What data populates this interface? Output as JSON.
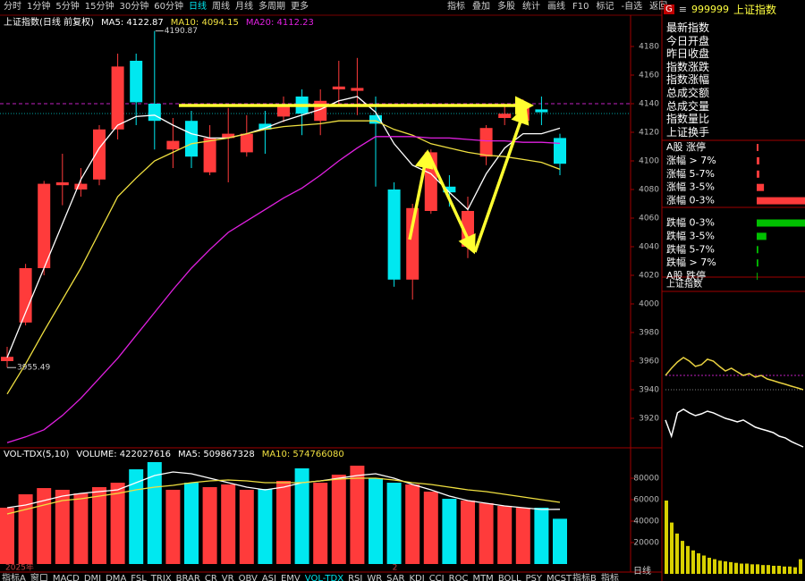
{
  "toolbar": {
    "periods": [
      "分时",
      "1分钟",
      "5分钟",
      "15分钟",
      "30分钟",
      "60分钟",
      "日线",
      "周线",
      "月线",
      "多周期",
      "更多"
    ],
    "active_period": "日线",
    "tools": [
      "指标",
      "叠加",
      "多股",
      "统计",
      "画线",
      "F10",
      "标记",
      "-自选",
      "返回"
    ]
  },
  "sidebar": {
    "badge": "G",
    "menu_icon": "≡",
    "code": "999999",
    "name": "上证指数",
    "fields": [
      "最新指数",
      "今日开盘",
      "昨日收盘",
      "指数涨跌",
      "指数涨幅",
      "总成交额",
      "总成交量",
      "指数量比",
      "上证换手"
    ]
  },
  "bottom_tabs": {
    "left": [
      "指标A",
      "窗口",
      "MACD",
      "DMI",
      "DMA",
      "FSL",
      "TRIX",
      "BRAR",
      "CR",
      "VR",
      "OBV",
      "ASI",
      "EMV",
      "VOL-TDX",
      "RSI",
      "WR",
      "SAR",
      "KDJ",
      "CCI",
      "ROC",
      "MTM",
      "BOLL",
      "PSY",
      "MCST"
    ],
    "active": "VOL-TDX",
    "right": [
      "指标B",
      "指标"
    ],
    "period": "日线"
  },
  "chart_data": [
    {
      "type": "candlestick",
      "title": "上证指数(日线 前复权)",
      "categories": [
        "2025年",
        null,
        null,
        null,
        null,
        null,
        null,
        null,
        null,
        null,
        null,
        null,
        null,
        null,
        null,
        null,
        null,
        null,
        null,
        null,
        null,
        "2",
        null,
        null,
        null,
        null,
        null,
        null,
        null,
        null,
        null
      ],
      "open": [
        3960,
        3987,
        4025,
        4083,
        4080,
        4087,
        4122,
        4170,
        4140,
        4108,
        4128,
        4092,
        4116,
        4106,
        4126,
        4131,
        4145,
        4128,
        4150,
        4149,
        4132,
        4080,
        4017,
        4065,
        4082,
        4040,
        4103,
        4130,
        4128,
        4136,
        4116
      ],
      "close": [
        3963,
        4025,
        4084,
        4085,
        4084,
        4122,
        4166,
        4141,
        4128,
        4114,
        4103,
        4116,
        4119,
        4119,
        4122,
        4138,
        4133,
        4142,
        4152,
        4151,
        4126,
        4017,
        4067,
        4106,
        4078,
        4065,
        4123,
        4133,
        4139,
        4134,
        4098
      ],
      "high": [
        3970,
        4028,
        4086,
        4105,
        4095,
        4125,
        4175,
        4175,
        4190.87,
        4130,
        4135,
        4125,
        4137,
        4132,
        4135,
        4145,
        4150,
        4150,
        4170,
        4172,
        4145,
        4085,
        4070,
        4108,
        4090,
        4075,
        4125,
        4140,
        4143,
        4145,
        4119
      ],
      "low": [
        3955.49,
        3985,
        4020,
        4069,
        4075,
        4083,
        4115,
        4125,
        4108,
        4095,
        4095,
        4090,
        4085,
        4103,
        4105,
        4127,
        4118,
        4118,
        4138,
        4132,
        4082,
        4012,
        4003,
        4063,
        4068,
        4032,
        4097,
        4125,
        4126,
        4125,
        4090
      ],
      "up_color": "#ff3b3b",
      "down_color": "#00e8f0",
      "ylim": [
        3900,
        4200
      ],
      "yticks": [
        3920,
        3940,
        3960,
        3980,
        4000,
        4020,
        4040,
        4060,
        4080,
        4100,
        4120,
        4140,
        4160,
        4180
      ],
      "lines": [
        {
          "name": "MA5: 4122.87",
          "color": "#ffffff",
          "values": [
            3962.5,
            3994,
            4025,
            4056,
            4087,
            4109,
            4125,
            4131,
            4132,
            4125,
            4119,
            4116,
            4116,
            4119,
            4123,
            4128,
            4132,
            4136,
            4142,
            4145,
            4134,
            4112,
            4097,
            4091,
            4078,
            4066,
            4091,
            4109,
            4119,
            4119,
            4122.87
          ]
        },
        {
          "name": "MA10: 4094.15",
          "color": "#f0e040",
          "values": [
            3937,
            3958,
            3981,
            4003,
            4025,
            4050,
            4075,
            4088,
            4100,
            4106,
            4112,
            4114,
            4116,
            4119,
            4122,
            4124,
            4125,
            4126,
            4128,
            4128,
            4128,
            4122,
            4118,
            4112,
            4109,
            4106,
            4104,
            4103,
            4101,
            4099,
            4094.15
          ]
        },
        {
          "name": "MA20: 4112.23",
          "color": "#e020e0",
          "values": [
            3903,
            3907,
            3912,
            3922,
            3934,
            3948,
            3962,
            3978,
            3994,
            4010,
            4025,
            4038,
            4050,
            4058,
            4066,
            4074,
            4081,
            4090,
            4100,
            4109,
            4117,
            4117,
            4117,
            4116,
            4116,
            4115,
            4114,
            4114,
            4113,
            4113,
            4112.23
          ]
        }
      ],
      "high_label": "4190.87",
      "low_label": "3955.49"
    },
    {
      "type": "volume",
      "title": "VOL-TDX(5,10)",
      "volume_label": "VOLUME: 422027616",
      "values": [
        52500,
        65000,
        70800,
        69200,
        65800,
        71700,
        75800,
        88300,
        95000,
        69200,
        75800,
        71700,
        74200,
        69200,
        70000,
        77500,
        89200,
        75800,
        83300,
        91700,
        80000,
        75800,
        74200,
        67500,
        60800,
        59200,
        56700,
        54200,
        52500,
        52500,
        42203
      ],
      "ylim": [
        0,
        105000
      ],
      "yticks": [
        20000,
        40000,
        60000,
        80000
      ],
      "lines": [
        {
          "name": "MA5: 509867328",
          "color": "#ffffff",
          "values": [
            52500,
            55000,
            59200,
            63300,
            65800,
            67500,
            69200,
            75800,
            82500,
            85800,
            84200,
            80000,
            75800,
            71700,
            69200,
            71700,
            75800,
            77500,
            80000,
            82500,
            84200,
            80000,
            74200,
            69200,
            63300,
            59200,
            56700,
            54200,
            52500,
            50800,
            50987
          ]
        },
        {
          "name": "MA10: 574766080",
          "color": "#f0e040",
          "values": [
            46700,
            50800,
            55000,
            59200,
            60800,
            63300,
            65800,
            69200,
            71700,
            73300,
            75800,
            77500,
            78300,
            77500,
            75800,
            75800,
            75800,
            77500,
            79200,
            80000,
            80000,
            78300,
            75800,
            74200,
            71700,
            69200,
            67500,
            65000,
            62500,
            60000,
            57477
          ]
        }
      ]
    },
    {
      "type": "line",
      "title": "上证指数",
      "ylim": [
        3900,
        4000
      ],
      "series": [
        {
          "color": "#ffffff",
          "values": [
            3918.8,
            3907.5,
            3923.8,
            3926.3,
            3923.8,
            3921.9,
            3923.1,
            3925,
            3923.8,
            3921.9,
            3920,
            3918.8,
            3917.5,
            3918.8,
            3916.3,
            3913.8,
            3912.5,
            3911.3,
            3910,
            3907.5,
            3906.3,
            3903.8,
            3901.9,
            3900
          ]
        },
        {
          "color": "#e8d040",
          "values": [
            3950,
            3955,
            3959.4,
            3962.5,
            3960,
            3956.3,
            3957.5,
            3961.3,
            3960,
            3956.3,
            3953.1,
            3955,
            3952.5,
            3950,
            3951.3,
            3948.8,
            3950,
            3947.5,
            3946.3,
            3945,
            3943.8,
            3942.5,
            3941.3,
            3940
          ]
        }
      ]
    },
    {
      "type": "bar",
      "color": "#d8d000",
      "ylim": [
        0,
        100
      ],
      "values": [
        100,
        70,
        55,
        45,
        38,
        32,
        28,
        25,
        22,
        20,
        18,
        17,
        16,
        15,
        14,
        14,
        13,
        13,
        12,
        12,
        11,
        11,
        10,
        10,
        9,
        20
      ]
    },
    {
      "type": "hbar",
      "categories": [
        "A股 涨停",
        "涨幅 > 7%",
        "涨幅 5-7%",
        "涨幅 3-5%",
        "涨幅 0-3%",
        "跌幅 0-3%",
        "跌幅 3-5%",
        "跌幅 5-7%",
        "跌幅 > 7%",
        "A股 跌停"
      ],
      "values": [
        2.2,
        3.3,
        3.3,
        9,
        60,
        60,
        12,
        2,
        2,
        1
      ],
      "colors": [
        "#ff3b3b",
        "#ff3b3b",
        "#ff3b3b",
        "#ff3b3b",
        "#ff3b3b",
        "#00c000",
        "#00c000",
        "#00c000",
        "#00c000",
        "#00c000"
      ],
      "xlim": [
        0,
        60
      ]
    }
  ]
}
